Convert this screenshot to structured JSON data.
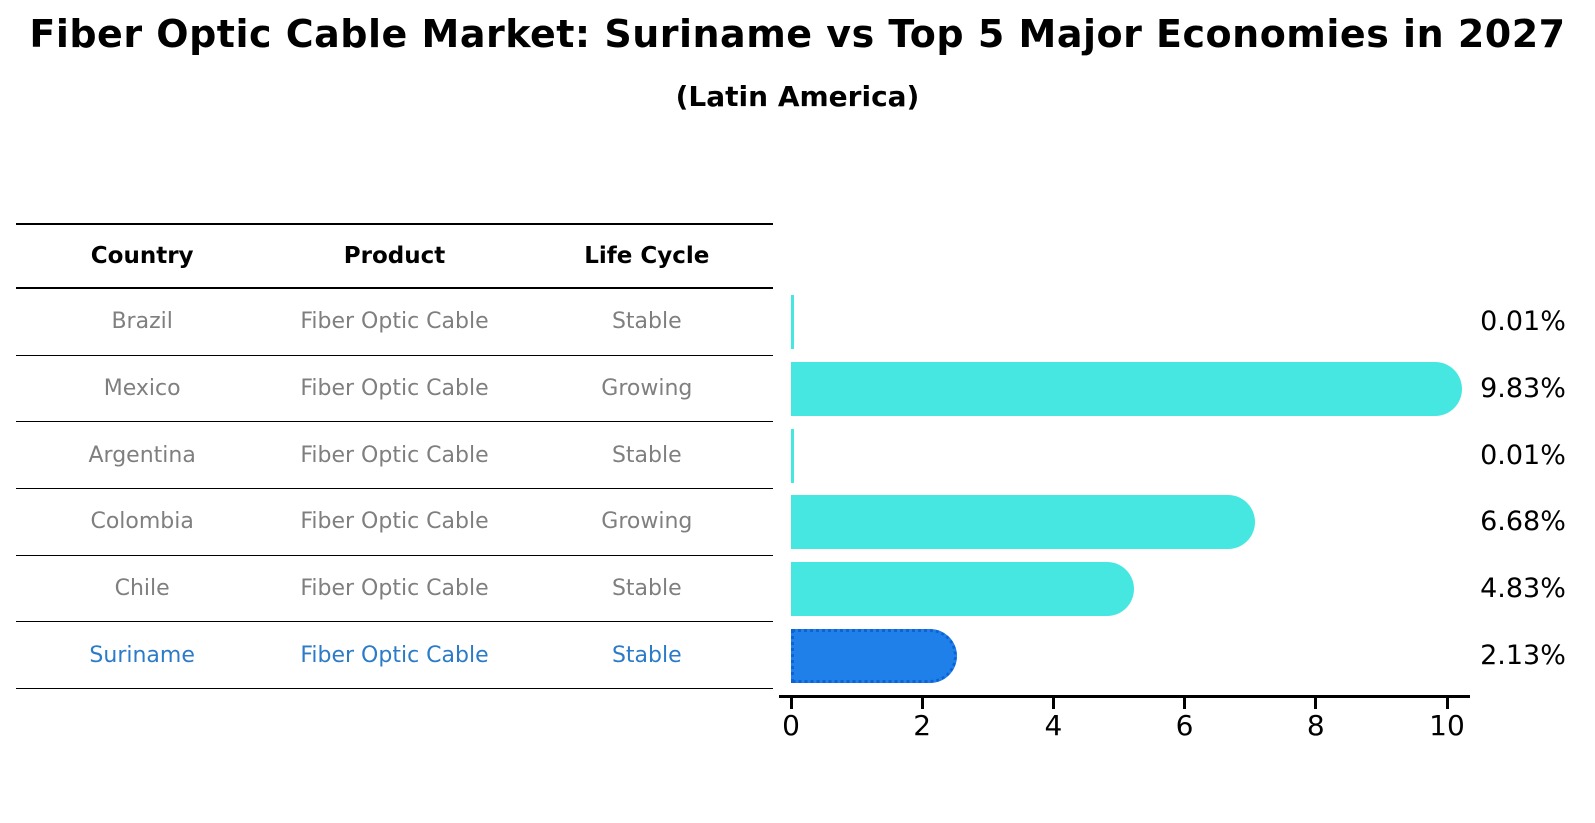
{
  "title": "Fiber Optic Cable Market: Suriname vs Top 5 Major Economies in 2027",
  "subtitle": "(Latin America)",
  "table": {
    "headers": [
      "Country",
      "Product",
      "Life Cycle"
    ],
    "rows": [
      {
        "country": "Brazil",
        "product": "Fiber Optic Cable",
        "life_cycle": "Stable",
        "highlighted": false
      },
      {
        "country": "Mexico",
        "product": "Fiber Optic Cable",
        "life_cycle": "Growing",
        "highlighted": false
      },
      {
        "country": "Argentina",
        "product": "Fiber Optic Cable",
        "life_cycle": "Stable",
        "highlighted": false
      },
      {
        "country": "Colombia",
        "product": "Fiber Optic Cable",
        "life_cycle": "Growing",
        "highlighted": false
      },
      {
        "country": "Chile",
        "product": "Fiber Optic Cable",
        "life_cycle": "Stable",
        "highlighted": false
      },
      {
        "country": "Suriname",
        "product": "Fiber Optic Cable",
        "life_cycle": "Stable",
        "highlighted": true
      }
    ]
  },
  "chart_data": {
    "type": "bar",
    "orientation": "horizontal",
    "categories": [
      "Brazil",
      "Mexico",
      "Argentina",
      "Colombia",
      "Chile",
      "Suriname"
    ],
    "values": [
      0.01,
      9.83,
      0.01,
      6.68,
      4.83,
      2.13
    ],
    "value_labels": [
      "0.01%",
      "9.83%",
      "0.01%",
      "6.68%",
      "4.83%",
      "2.13%"
    ],
    "highlight_index": 5,
    "xlim": [
      0,
      10.35
    ],
    "xticks": [
      "0",
      "2",
      "4",
      "6",
      "8",
      "10"
    ],
    "xtick_values": [
      0,
      2,
      4,
      6,
      8,
      10
    ],
    "grid": false,
    "legend": false
  },
  "colors": {
    "bar": "#47E7E1",
    "highlight_bar": "#1E80E8",
    "highlight_bar_border": "#0E62D8",
    "row_text": "#7F7F7F",
    "highlight_text": "#2B7BC9",
    "axis": "#000000"
  }
}
